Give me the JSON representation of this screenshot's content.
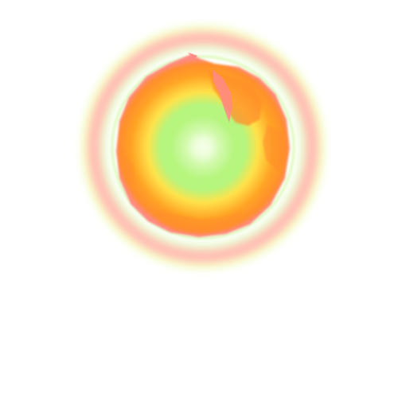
{
  "graphic": {
    "name": "glowing-orb",
    "colors": {
      "background": "#ffffff",
      "core_highlight": "#f4ffe6",
      "core": "#b6f57e",
      "mid_yellow": "#ffe24a",
      "orange": "#ffa325",
      "deep_orange": "#ff8e2c",
      "pink_rim": "#ff8a86",
      "halo_pink": "#ffb7aa",
      "halo_yellow": "#f2fb9c",
      "halo_green": "#dcfbb8"
    }
  }
}
